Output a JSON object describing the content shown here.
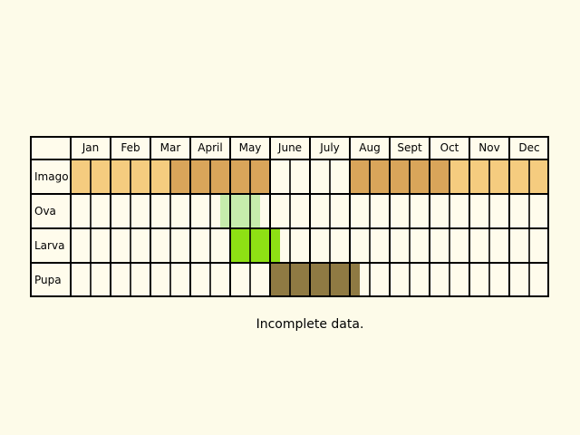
{
  "months": [
    "Jan",
    "Feb",
    "Mar",
    "April",
    "May",
    "June",
    "July",
    "Aug",
    "Sept",
    "Oct",
    "Nov",
    "Dec"
  ],
  "stages": [
    {
      "label": "Imago",
      "cells": [
        "A",
        "A",
        "A",
        "A",
        "A",
        "B",
        "B",
        "B",
        "B",
        "B",
        "-",
        "-",
        "-",
        "-",
        "B",
        "B",
        "B",
        "B",
        "B",
        "A",
        "A",
        "A",
        "A",
        "A"
      ]
    },
    {
      "label": "Ova",
      "cells": [
        "-",
        "-",
        "-",
        "-",
        "-",
        "-",
        "-",
        "-",
        "-",
        "-",
        "-",
        "-",
        "-",
        "-",
        "-",
        "-",
        "-",
        "-",
        "-",
        "-",
        "-",
        "-",
        "-",
        "-"
      ],
      "overlay": {
        "start": 7.5,
        "end": 9.5,
        "fill": "ova"
      }
    },
    {
      "label": "Larva",
      "cells": [
        "-",
        "-",
        "-",
        "-",
        "-",
        "-",
        "-",
        "-",
        "-",
        "-",
        "-",
        "-",
        "-",
        "-",
        "-",
        "-",
        "-",
        "-",
        "-",
        "-",
        "-",
        "-",
        "-",
        "-"
      ],
      "overlay": {
        "start": 8,
        "end": 10.5,
        "fill": "larva"
      }
    },
    {
      "label": "Pupa",
      "cells": [
        "-",
        "-",
        "-",
        "-",
        "-",
        "-",
        "-",
        "-",
        "-",
        "-",
        "-",
        "-",
        "-",
        "-",
        "-",
        "-",
        "-",
        "-",
        "-",
        "-",
        "-",
        "-",
        "-",
        "-"
      ],
      "overlay": {
        "start": 10,
        "end": 14.5,
        "fill": "pupa"
      }
    }
  ],
  "colors": {
    "A": "#f5cc7f",
    "B": "#d9a55a",
    "ova": "#c6ecac",
    "larva": "#8ee014",
    "pupa": "#8f7a43",
    "empty": "#fffcec",
    "grid": "#000000"
  },
  "caption": "Incomplete data."
}
